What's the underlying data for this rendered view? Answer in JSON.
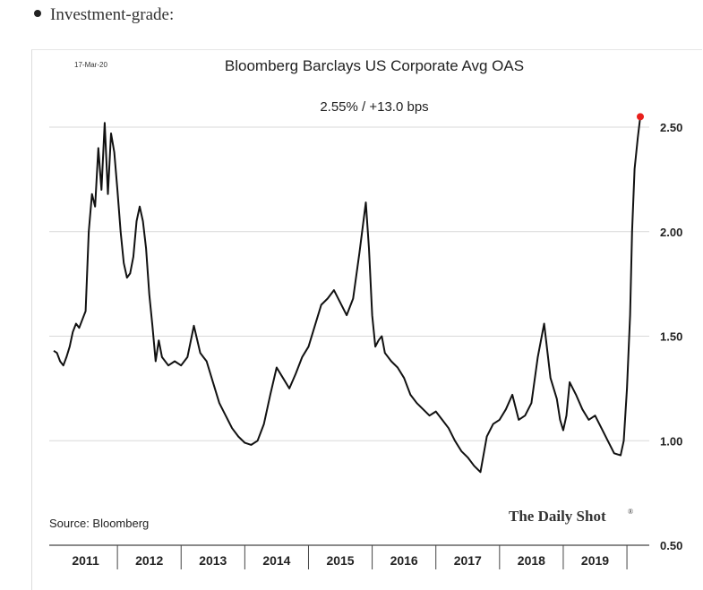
{
  "intro": {
    "label": "Investment-grade:"
  },
  "chart_data": {
    "type": "line",
    "title": "Bloomberg Barclays US Corporate Avg OAS",
    "subtitle": "2.55%  /  +13.0 bps",
    "date_label": "17-Mar-20",
    "source": "Source: Bloomberg",
    "brand": "The Daily Shot",
    "brand_mark": "®",
    "xlabel": "",
    "ylabel": "",
    "ylim": [
      0.5,
      2.5
    ],
    "yticks": [
      "0.50",
      "1.00",
      "1.50",
      "2.00",
      "2.50"
    ],
    "x_tick_labels": [
      "2011",
      "2012",
      "2013",
      "2014",
      "2015",
      "2016",
      "2017",
      "2018",
      "2019"
    ],
    "grid": true,
    "last_point_color": "#e8201c",
    "series": [
      {
        "x": [
          2011.0,
          2011.05,
          2011.1,
          2011.15,
          2011.2,
          2011.25,
          2011.3,
          2011.35,
          2011.4,
          2011.45,
          2011.5,
          2011.55,
          2011.6,
          2011.65,
          2011.7,
          2011.75,
          2011.8,
          2011.85,
          2011.9,
          2011.95,
          2012.0,
          2012.05,
          2012.1,
          2012.15,
          2012.2,
          2012.25,
          2012.3,
          2012.35,
          2012.4,
          2012.45,
          2012.5,
          2012.55,
          2012.6,
          2012.65,
          2012.7,
          2012.8,
          2012.9,
          2013.0,
          2013.1,
          2013.2,
          2013.3,
          2013.35,
          2013.4,
          2013.5,
          2013.6,
          2013.7,
          2013.8,
          2013.9,
          2014.0,
          2014.1,
          2014.2,
          2014.3,
          2014.4,
          2014.5,
          2014.6,
          2014.7,
          2014.8,
          2014.9,
          2015.0,
          2015.1,
          2015.2,
          2015.3,
          2015.4,
          2015.5,
          2015.6,
          2015.7,
          2015.8,
          2015.9,
          2015.95,
          2016.0,
          2016.05,
          2016.1,
          2016.15,
          2016.2,
          2016.3,
          2016.4,
          2016.5,
          2016.6,
          2016.7,
          2016.8,
          2016.9,
          2017.0,
          2017.1,
          2017.2,
          2017.3,
          2017.4,
          2017.5,
          2017.6,
          2017.7,
          2017.8,
          2017.9,
          2018.0,
          2018.1,
          2018.2,
          2018.3,
          2018.4,
          2018.5,
          2018.6,
          2018.7,
          2018.8,
          2018.9,
          2018.95,
          2019.0,
          2019.05,
          2019.1,
          2019.2,
          2019.3,
          2019.4,
          2019.5,
          2019.6,
          2019.7,
          2019.8,
          2019.9,
          2019.95,
          2020.0,
          2020.05,
          2020.08,
          2020.12,
          2020.17,
          2020.21
        ],
        "y": [
          1.43,
          1.42,
          1.38,
          1.36,
          1.4,
          1.45,
          1.52,
          1.56,
          1.54,
          1.58,
          1.62,
          2.0,
          2.18,
          2.12,
          2.4,
          2.2,
          2.52,
          2.18,
          2.47,
          2.38,
          2.2,
          2.0,
          1.85,
          1.78,
          1.8,
          1.88,
          2.05,
          2.12,
          2.05,
          1.92,
          1.7,
          1.55,
          1.38,
          1.48,
          1.4,
          1.36,
          1.38,
          1.36,
          1.4,
          1.55,
          1.42,
          1.4,
          1.38,
          1.28,
          1.18,
          1.12,
          1.06,
          1.02,
          0.99,
          0.98,
          1.0,
          1.08,
          1.22,
          1.35,
          1.3,
          1.25,
          1.32,
          1.4,
          1.45,
          1.55,
          1.65,
          1.68,
          1.72,
          1.66,
          1.6,
          1.68,
          1.9,
          2.14,
          1.92,
          1.6,
          1.45,
          1.48,
          1.5,
          1.42,
          1.38,
          1.35,
          1.3,
          1.22,
          1.18,
          1.15,
          1.12,
          1.14,
          1.1,
          1.06,
          1.0,
          0.95,
          0.92,
          0.88,
          0.85,
          1.02,
          1.08,
          1.1,
          1.15,
          1.22,
          1.1,
          1.12,
          1.18,
          1.4,
          1.56,
          1.3,
          1.2,
          1.1,
          1.05,
          1.12,
          1.28,
          1.22,
          1.15,
          1.1,
          1.12,
          1.06,
          1.0,
          0.94,
          0.93,
          1.0,
          1.25,
          1.6,
          2.0,
          2.3,
          2.45,
          2.55
        ]
      }
    ]
  }
}
